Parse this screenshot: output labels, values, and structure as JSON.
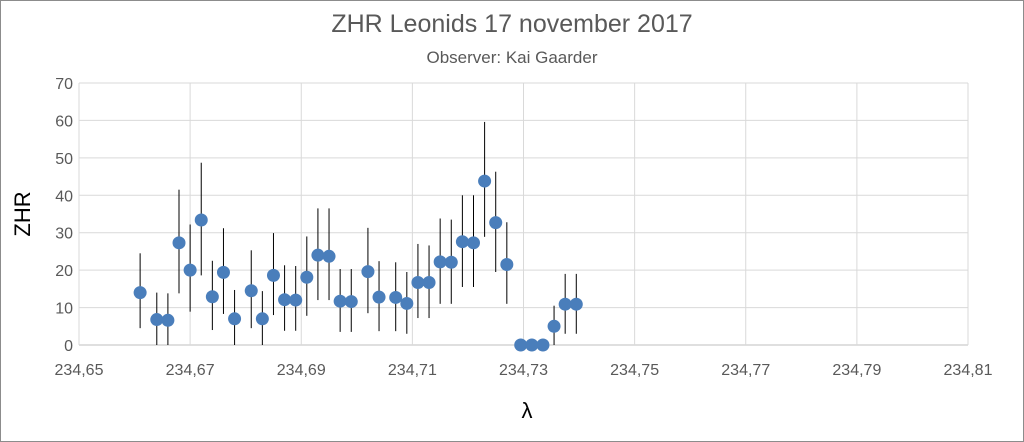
{
  "chart_data": {
    "type": "scatter",
    "title": "ZHR Leonids 17 november 2017",
    "subtitle": "Observer: Kai Gaarder",
    "xlabel": "λ",
    "ylabel": "ZHR",
    "xlim": [
      234.65,
      234.81
    ],
    "ylim": [
      0,
      70
    ],
    "x_ticks": [
      "234,65",
      "234,67",
      "234,69",
      "234,71",
      "234,73",
      "234,75",
      "234,77",
      "234,79",
      "234,81"
    ],
    "y_ticks": [
      "0",
      "10",
      "20",
      "30",
      "40",
      "50",
      "60",
      "70"
    ],
    "grid": true,
    "legend": "none",
    "marker_color": "#4a7ebb",
    "error_bar_color": "#000000",
    "points": [
      {
        "x": 234.661,
        "y": 14.0,
        "err_low": 4.5,
        "err_high": 24.5
      },
      {
        "x": 234.664,
        "y": 6.8,
        "err_low": 0.0,
        "err_high": 14.0
      },
      {
        "x": 234.666,
        "y": 6.6,
        "err_low": 0.0,
        "err_high": 13.8
      },
      {
        "x": 234.668,
        "y": 27.3,
        "err_low": 13.8,
        "err_high": 41.5
      },
      {
        "x": 234.67,
        "y": 20.0,
        "err_low": 8.9,
        "err_high": 32.2
      },
      {
        "x": 234.672,
        "y": 33.4,
        "err_low": 18.6,
        "err_high": 48.7
      },
      {
        "x": 234.674,
        "y": 12.9,
        "err_low": 4.0,
        "err_high": 22.5
      },
      {
        "x": 234.676,
        "y": 19.4,
        "err_low": 8.3,
        "err_high": 31.2
      },
      {
        "x": 234.678,
        "y": 7.0,
        "err_low": 0.0,
        "err_high": 14.7
      },
      {
        "x": 234.681,
        "y": 14.5,
        "err_low": 4.5,
        "err_high": 25.3
      },
      {
        "x": 234.683,
        "y": 7.0,
        "err_low": 0.0,
        "err_high": 14.4
      },
      {
        "x": 234.685,
        "y": 18.6,
        "err_low": 8.0,
        "err_high": 29.9
      },
      {
        "x": 234.687,
        "y": 12.1,
        "err_low": 3.8,
        "err_high": 21.3
      },
      {
        "x": 234.689,
        "y": 12.0,
        "err_low": 3.8,
        "err_high": 21.1
      },
      {
        "x": 234.691,
        "y": 18.1,
        "err_low": 7.8,
        "err_high": 29.0
      },
      {
        "x": 234.693,
        "y": 24.0,
        "err_low": 12.0,
        "err_high": 36.5
      },
      {
        "x": 234.695,
        "y": 23.7,
        "err_low": 12.0,
        "err_high": 36.5
      },
      {
        "x": 234.697,
        "y": 11.7,
        "err_low": 3.5,
        "err_high": 20.3
      },
      {
        "x": 234.699,
        "y": 11.6,
        "err_low": 3.5,
        "err_high": 20.3
      },
      {
        "x": 234.702,
        "y": 19.6,
        "err_low": 8.5,
        "err_high": 31.3
      },
      {
        "x": 234.704,
        "y": 12.8,
        "err_low": 3.7,
        "err_high": 22.4
      },
      {
        "x": 234.707,
        "y": 12.7,
        "err_low": 3.7,
        "err_high": 22.1
      },
      {
        "x": 234.709,
        "y": 11.1,
        "err_low": 3.0,
        "err_high": 19.5
      },
      {
        "x": 234.711,
        "y": 16.7,
        "err_low": 7.2,
        "err_high": 27.0
      },
      {
        "x": 234.713,
        "y": 16.7,
        "err_low": 7.2,
        "err_high": 26.6
      },
      {
        "x": 234.715,
        "y": 22.2,
        "err_low": 11.0,
        "err_high": 33.8
      },
      {
        "x": 234.717,
        "y": 22.1,
        "err_low": 11.0,
        "err_high": 33.5
      },
      {
        "x": 234.719,
        "y": 27.6,
        "err_low": 15.5,
        "err_high": 40.0
      },
      {
        "x": 234.721,
        "y": 27.3,
        "err_low": 15.5,
        "err_high": 40.0
      },
      {
        "x": 234.723,
        "y": 43.8,
        "err_low": 28.9,
        "err_high": 59.6
      },
      {
        "x": 234.725,
        "y": 32.7,
        "err_low": 19.5,
        "err_high": 46.3
      },
      {
        "x": 234.727,
        "y": 21.5,
        "err_low": 11.0,
        "err_high": 32.8
      },
      {
        "x": 234.7295,
        "y": 0.0,
        "err_low": 0.0,
        "err_high": 0.0
      },
      {
        "x": 234.7315,
        "y": 0.0,
        "err_low": 0.0,
        "err_high": 0.0
      },
      {
        "x": 234.7335,
        "y": 0.0,
        "err_low": 0.0,
        "err_high": 0.0
      },
      {
        "x": 234.7355,
        "y": 5.0,
        "err_low": 0.0,
        "err_high": 10.5
      },
      {
        "x": 234.7375,
        "y": 10.9,
        "err_low": 3.0,
        "err_high": 19.0
      },
      {
        "x": 234.7395,
        "y": 10.9,
        "err_low": 3.0,
        "err_high": 19.0
      }
    ]
  }
}
